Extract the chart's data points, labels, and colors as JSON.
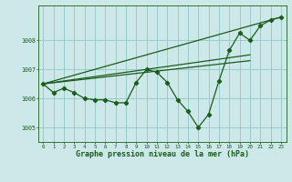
{
  "background_color": "#cce8e8",
  "grid_color": "#99cccc",
  "line_color": "#1a5c1a",
  "xlabel": "Graphe pression niveau de la mer (hPa)",
  "xlabel_fontsize": 6.0,
  "ylabel_ticks": [
    1005,
    1006,
    1007,
    1008
  ],
  "xlim": [
    -0.5,
    23.5
  ],
  "ylim": [
    1004.5,
    1009.2
  ],
  "main_x": [
    0,
    1,
    2,
    3,
    4,
    5,
    6,
    7,
    8,
    9,
    10,
    11,
    12,
    13,
    14,
    15,
    16,
    17,
    18,
    19,
    20,
    21,
    22,
    23
  ],
  "main_y": [
    1006.5,
    1006.2,
    1006.35,
    1006.2,
    1006.0,
    1005.95,
    1005.95,
    1005.85,
    1005.85,
    1006.55,
    1007.0,
    1006.9,
    1006.55,
    1005.95,
    1005.55,
    1005.0,
    1005.45,
    1006.6,
    1007.65,
    1008.25,
    1008.0,
    1008.5,
    1008.7,
    1008.8
  ],
  "trend1_x": [
    0,
    23
  ],
  "trend1_y": [
    1006.5,
    1008.8
  ],
  "trend2_x": [
    0,
    20
  ],
  "trend2_y": [
    1006.5,
    1007.5
  ],
  "trend3_x": [
    0,
    20
  ],
  "trend3_y": [
    1006.5,
    1007.3
  ]
}
